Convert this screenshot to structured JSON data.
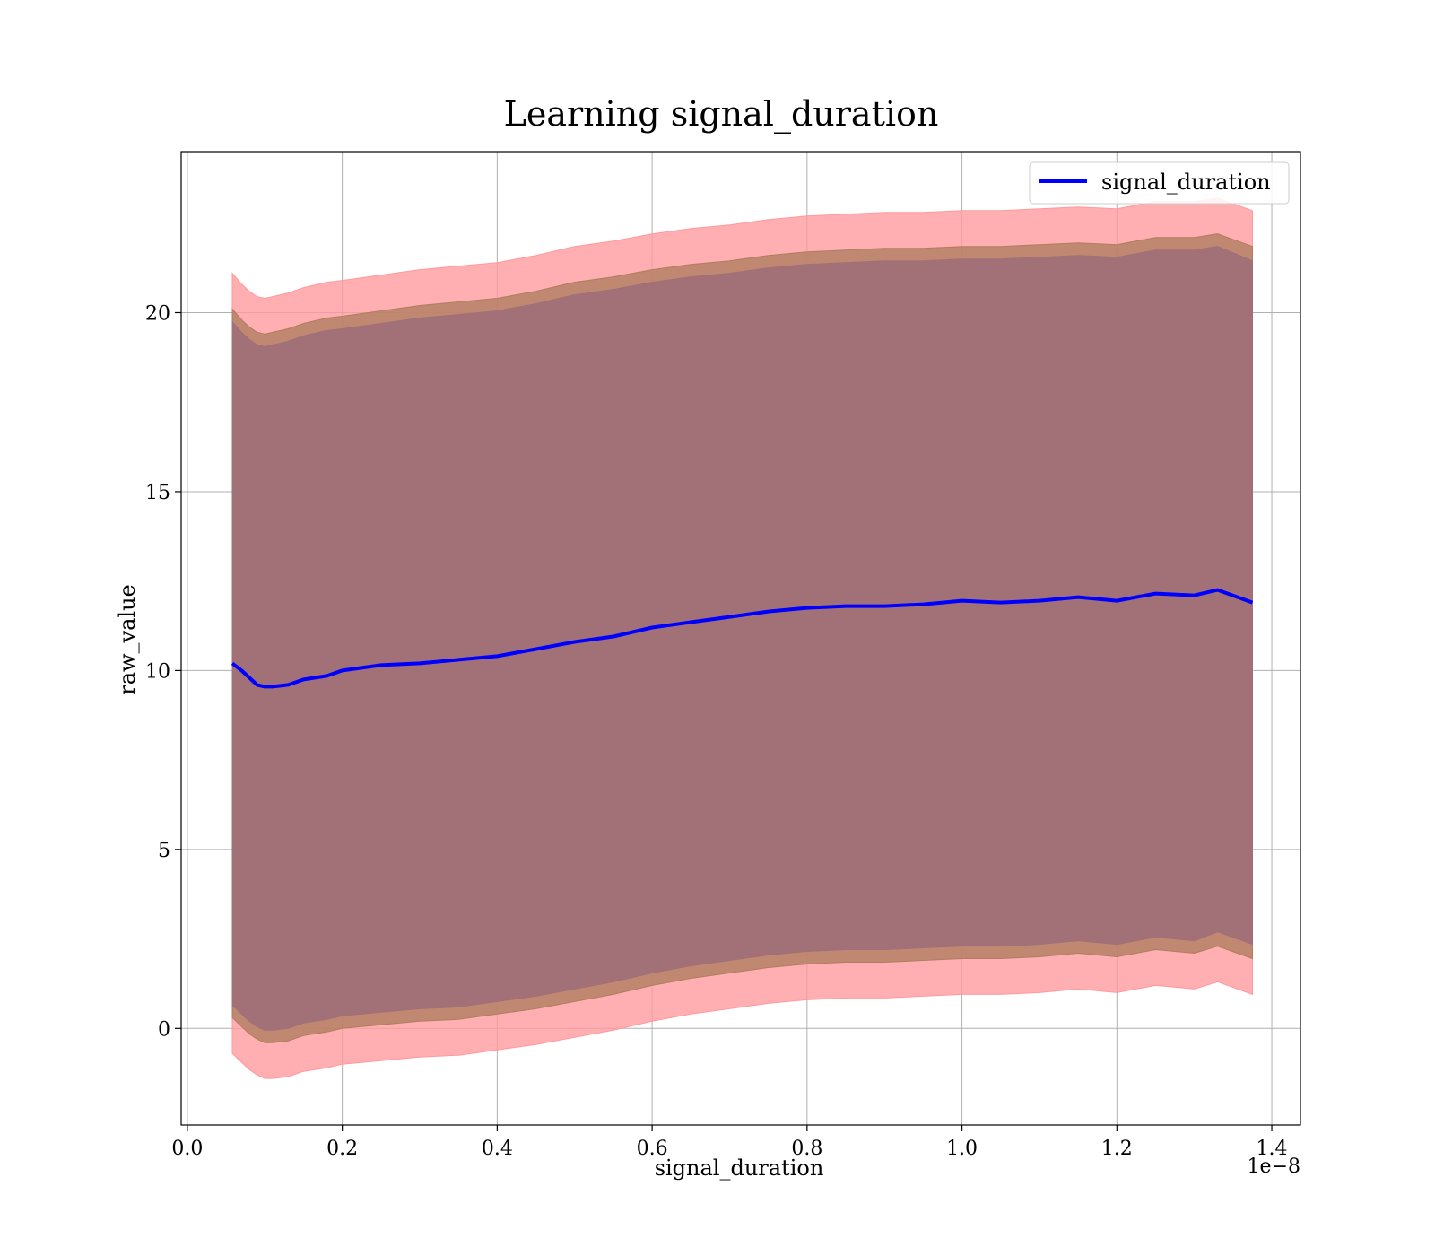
{
  "chart_data": {
    "type": "line",
    "title": "Learning signal_duration",
    "xlabel": "signal_duration",
    "ylabel": "raw_value",
    "x_offset_label": "1e−8",
    "xlim": [
      -0.008,
      1.437
    ],
    "ylim": [
      -2.7,
      24.5
    ],
    "x_ticks": [
      0.0,
      0.2,
      0.4,
      0.6,
      0.8,
      1.0,
      1.2,
      1.4
    ],
    "x_tick_labels": [
      "0.0",
      "0.2",
      "0.4",
      "0.6",
      "0.8",
      "1.0",
      "1.2",
      "1.4"
    ],
    "y_ticks": [
      0,
      5,
      10,
      15,
      20
    ],
    "y_tick_labels": [
      "0",
      "5",
      "10",
      "15",
      "20"
    ],
    "grid": true,
    "legend": {
      "position": "upper right",
      "entries": [
        "signal_duration"
      ]
    },
    "colors": {
      "line": "#0000ff",
      "outer_band": "#ff9a9e",
      "middle_band": "#b07d62",
      "inner_band": "#a07078",
      "grid": "#b0b0b0"
    },
    "x": [
      0.058,
      0.07,
      0.08,
      0.09,
      0.1,
      0.11,
      0.13,
      0.15,
      0.18,
      0.2,
      0.25,
      0.3,
      0.35,
      0.4,
      0.45,
      0.5,
      0.55,
      0.6,
      0.65,
      0.7,
      0.75,
      0.8,
      0.85,
      0.9,
      0.95,
      1.0,
      1.05,
      1.1,
      1.15,
      1.2,
      1.25,
      1.3,
      1.33,
      1.375
    ],
    "series": [
      {
        "name": "signal_duration",
        "values": [
          10.2,
          10.0,
          9.8,
          9.6,
          9.55,
          9.55,
          9.6,
          9.75,
          9.85,
          10.0,
          10.15,
          10.2,
          10.3,
          10.4,
          10.6,
          10.8,
          10.95,
          11.2,
          11.35,
          11.5,
          11.65,
          11.75,
          11.8,
          11.8,
          11.85,
          11.95,
          11.9,
          11.95,
          12.05,
          11.95,
          12.15,
          12.1,
          12.25,
          11.9
        ]
      }
    ],
    "bands": [
      {
        "upper": [
          21.1,
          20.8,
          20.6,
          20.45,
          20.4,
          20.45,
          20.55,
          20.7,
          20.85,
          20.9,
          21.05,
          21.2,
          21.3,
          21.4,
          21.6,
          21.85,
          22.0,
          22.2,
          22.35,
          22.45,
          22.6,
          22.7,
          22.75,
          22.8,
          22.8,
          22.85,
          22.85,
          22.9,
          22.95,
          22.9,
          23.1,
          23.1,
          23.2,
          22.85
        ],
        "lower": [
          -0.7,
          -0.95,
          -1.15,
          -1.3,
          -1.4,
          -1.4,
          -1.35,
          -1.2,
          -1.1,
          -1.0,
          -0.9,
          -0.8,
          -0.75,
          -0.6,
          -0.45,
          -0.25,
          -0.05,
          0.2,
          0.4,
          0.55,
          0.7,
          0.8,
          0.85,
          0.85,
          0.9,
          0.95,
          0.95,
          1.0,
          1.1,
          1.0,
          1.2,
          1.1,
          1.3,
          0.95
        ]
      },
      {
        "upper": [
          20.1,
          19.8,
          19.6,
          19.45,
          19.4,
          19.45,
          19.55,
          19.7,
          19.85,
          19.9,
          20.05,
          20.2,
          20.3,
          20.4,
          20.6,
          20.85,
          21.0,
          21.2,
          21.35,
          21.45,
          21.6,
          21.7,
          21.75,
          21.8,
          21.8,
          21.85,
          21.85,
          21.9,
          21.95,
          21.9,
          22.1,
          22.1,
          22.2,
          21.85
        ],
        "lower": [
          0.3,
          0.05,
          -0.15,
          -0.3,
          -0.4,
          -0.4,
          -0.35,
          -0.2,
          -0.1,
          0.0,
          0.1,
          0.2,
          0.25,
          0.4,
          0.55,
          0.75,
          0.95,
          1.2,
          1.4,
          1.55,
          1.7,
          1.8,
          1.85,
          1.85,
          1.9,
          1.95,
          1.95,
          2.0,
          2.1,
          2.0,
          2.2,
          2.1,
          2.3,
          1.95
        ]
      },
      {
        "upper": [
          19.75,
          19.45,
          19.25,
          19.1,
          19.05,
          19.1,
          19.2,
          19.35,
          19.5,
          19.55,
          19.7,
          19.85,
          19.95,
          20.05,
          20.25,
          20.5,
          20.65,
          20.85,
          21.0,
          21.1,
          21.25,
          21.35,
          21.4,
          21.45,
          21.45,
          21.5,
          21.5,
          21.55,
          21.6,
          21.55,
          21.75,
          21.75,
          21.85,
          21.45
        ],
        "lower": [
          0.65,
          0.4,
          0.2,
          0.05,
          -0.05,
          -0.05,
          0.0,
          0.15,
          0.25,
          0.35,
          0.45,
          0.55,
          0.6,
          0.75,
          0.9,
          1.1,
          1.3,
          1.55,
          1.75,
          1.9,
          2.05,
          2.15,
          2.2,
          2.2,
          2.25,
          2.3,
          2.3,
          2.35,
          2.45,
          2.35,
          2.55,
          2.45,
          2.7,
          2.35
        ]
      }
    ]
  }
}
